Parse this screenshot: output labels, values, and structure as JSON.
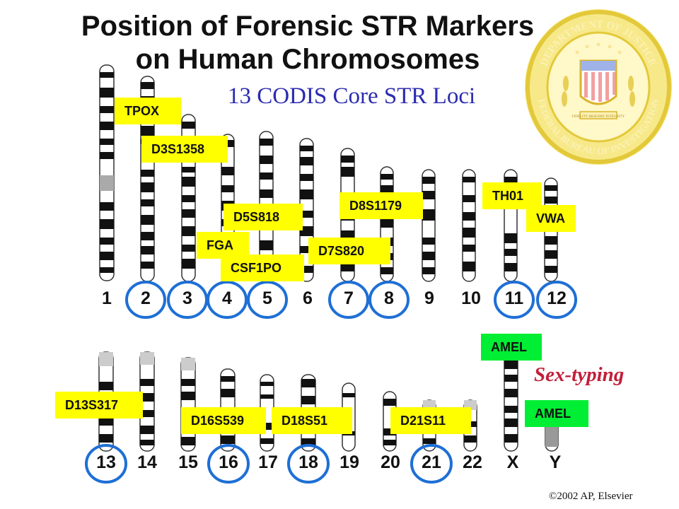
{
  "title_line1": "Position of Forensic STR Markers",
  "title_line2": "on Human Chromosomes",
  "subtitle": "13 CODIS Core STR Loci",
  "sex_typing_label": "Sex-typing",
  "copyright": "©2002 AP, Elsevier",
  "seal": {
    "text_top": "DEPARTMENT OF JUSTICE",
    "text_bottom": "FEDERAL BUREAU OF INVESTIGATION",
    "banner": "FIDELITY BRAVERY INTEGRITY"
  },
  "colors": {
    "marker_label": "#ffff00",
    "sex_marker_label": "#00ee33",
    "circle": "#1e6fd6",
    "subtitle": "#2b2bb0",
    "sex_typing": "#c21e3a"
  },
  "chromosomes_row1": [
    "1",
    "2",
    "3",
    "4",
    "5",
    "6",
    "7",
    "8",
    "9",
    "10",
    "11",
    "12"
  ],
  "chromosomes_row2": [
    "13",
    "14",
    "15",
    "16",
    "17",
    "18",
    "19",
    "20",
    "21",
    "22",
    "X",
    "Y"
  ],
  "circled_chromosomes": [
    "2",
    "3",
    "4",
    "5",
    "7",
    "8",
    "11",
    "12",
    "13",
    "16",
    "18",
    "21"
  ],
  "markers": {
    "tpox": "TPOX",
    "d3s1358": "D3S1358",
    "d5s818": "D5S818",
    "fga": "FGA",
    "csf1po": "CSF1PO",
    "d7s820": "D7S820",
    "d8s1179": "D8S1179",
    "th01": "TH01",
    "vwa": "VWA",
    "amel_x": "AMEL",
    "amel_y": "AMEL",
    "d13s317": "D13S317",
    "d16s539": "D16S539",
    "d18s51": "D18S51",
    "d21s11": "D21S11"
  }
}
